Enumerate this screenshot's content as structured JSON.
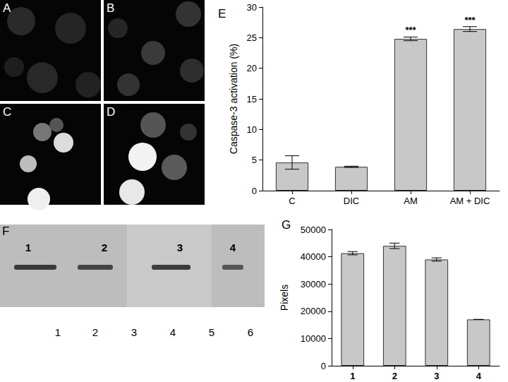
{
  "chart_data": [
    {
      "type": "bar",
      "title": "E",
      "categories": [
        "C",
        "DIC",
        "AM",
        "AM + DIC"
      ],
      "values": [
        4.6,
        3.9,
        24.8,
        26.4
      ],
      "errors": [
        1.1,
        0.1,
        0.3,
        0.4
      ],
      "color": "#c8c8c8",
      "y_label": "Caspase-3 activation (%)",
      "ylim": [
        0,
        30
      ],
      "yticks": [
        0,
        5,
        10,
        15,
        20,
        25,
        30
      ],
      "grid": false,
      "annotations": [
        {
          "category": "AM",
          "text": "***"
        },
        {
          "category": "AM + DIC",
          "text": "***"
        }
      ]
    },
    {
      "type": "bar",
      "title": "G",
      "categories": [
        "1",
        "2",
        "3",
        "4"
      ],
      "values": [
        41300,
        44000,
        39000,
        17000
      ],
      "errors": [
        600,
        1000,
        600,
        0
      ],
      "color": "#c8c8c8",
      "y_label": "Pixels",
      "ylim": [
        0,
        50000
      ],
      "yticks": [
        0,
        10000,
        20000,
        30000,
        40000,
        50000
      ],
      "grid": false
    }
  ],
  "figure": {
    "image_panels": [
      "A",
      "B",
      "C",
      "D"
    ],
    "blot": {
      "label": "F",
      "lane_labels_top": [
        "1",
        "2",
        "3",
        "4"
      ],
      "lane_labels_bottom": [
        "1",
        "2",
        "3",
        "4",
        "5",
        "6"
      ]
    }
  }
}
